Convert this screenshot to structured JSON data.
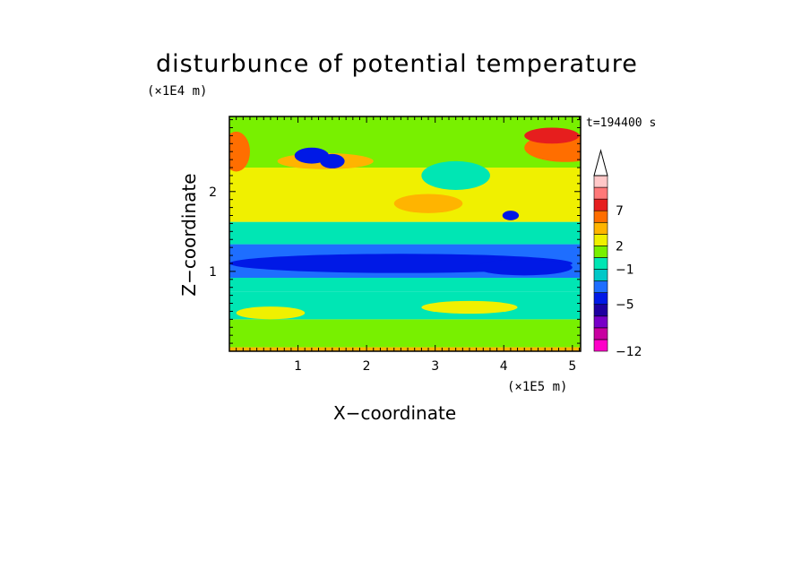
{
  "chart_data": {
    "type": "heatmap",
    "title": "disturbunce of potential temperature",
    "timestamp": "t=194400 s",
    "xlabel": "X−coordinate",
    "ylabel": "Z−coordinate",
    "x_unit": "(×1E5 m)",
    "y_unit": "(×1E4 m)",
    "xlim": [
      0,
      5.12
    ],
    "ylim": [
      0,
      2.94
    ],
    "x_ticks": [
      {
        "value": 1,
        "label": "1"
      },
      {
        "value": 2,
        "label": "2"
      },
      {
        "value": 3,
        "label": "3"
      },
      {
        "value": 4,
        "label": "4"
      },
      {
        "value": 5,
        "label": "5"
      }
    ],
    "y_ticks": [
      {
        "value": 1,
        "label": "1"
      },
      {
        "value": 2,
        "label": "2"
      }
    ],
    "colorbar": {
      "extend_max": true,
      "levels": [
        -12,
        -10,
        -8,
        -6,
        -5,
        -3,
        -2,
        -1,
        1,
        2,
        3,
        5,
        7,
        9,
        11
      ],
      "colors": [
        "#ff00c8",
        "#c800a0",
        "#7800c8",
        "#1e00a0",
        "#0019e6",
        "#1e6eff",
        "#00c8c8",
        "#00e6b4",
        "#78f000",
        "#f0f000",
        "#ffb400",
        "#ff6e00",
        "#e61e1e",
        "#ff7878",
        "#ffc8c8"
      ],
      "tick_labels": [
        {
          "level": 7,
          "label": "7"
        },
        {
          "level": 2,
          "label": "2"
        },
        {
          "level": -1,
          "label": "−1"
        },
        {
          "level": -5,
          "label": "−5"
        },
        {
          "level": -12,
          "label": "−12"
        }
      ]
    },
    "bands": [
      {
        "z_top": 0.05,
        "level": 3
      },
      {
        "z_top": 0.4,
        "level": 1
      },
      {
        "z_top": 0.75,
        "level": 0
      },
      {
        "z_top": 0.92,
        "level": -1
      },
      {
        "z_top": 1.34,
        "level": -3
      },
      {
        "z_top": 1.62,
        "level": 0
      },
      {
        "z_top": 2.3,
        "level": 2
      },
      {
        "z_top": 2.94,
        "level": 1
      }
    ],
    "features": [
      {
        "x": 2.5,
        "z": 1.1,
        "rx": 2.5,
        "rz": 0.12,
        "level": -5
      },
      {
        "x": 4.3,
        "z": 1.05,
        "rx": 0.7,
        "rz": 0.1,
        "level": -5
      },
      {
        "x": 1.4,
        "z": 2.38,
        "rx": 0.7,
        "rz": 0.1,
        "level": 3
      },
      {
        "x": 2.9,
        "z": 1.85,
        "rx": 0.5,
        "rz": 0.12,
        "level": 3
      },
      {
        "x": 3.3,
        "z": 2.2,
        "rx": 0.5,
        "rz": 0.18,
        "level": 0
      },
      {
        "x": 4.9,
        "z": 2.55,
        "rx": 0.6,
        "rz": 0.18,
        "level": 5
      },
      {
        "x": 4.7,
        "z": 2.7,
        "rx": 0.4,
        "rz": 0.1,
        "level": 7
      },
      {
        "x": 0.1,
        "z": 2.5,
        "rx": 0.2,
        "rz": 0.25,
        "level": 5
      },
      {
        "x": 1.2,
        "z": 2.45,
        "rx": 0.25,
        "rz": 0.1,
        "level": -5
      },
      {
        "x": 1.5,
        "z": 2.38,
        "rx": 0.18,
        "rz": 0.09,
        "level": -5
      },
      {
        "x": 4.1,
        "z": 1.7,
        "rx": 0.12,
        "rz": 0.06,
        "level": -5
      },
      {
        "x": 0.6,
        "z": 0.48,
        "rx": 0.5,
        "rz": 0.08,
        "level": 2
      },
      {
        "x": 3.5,
        "z": 0.55,
        "rx": 0.7,
        "rz": 0.08,
        "level": 2
      }
    ]
  }
}
